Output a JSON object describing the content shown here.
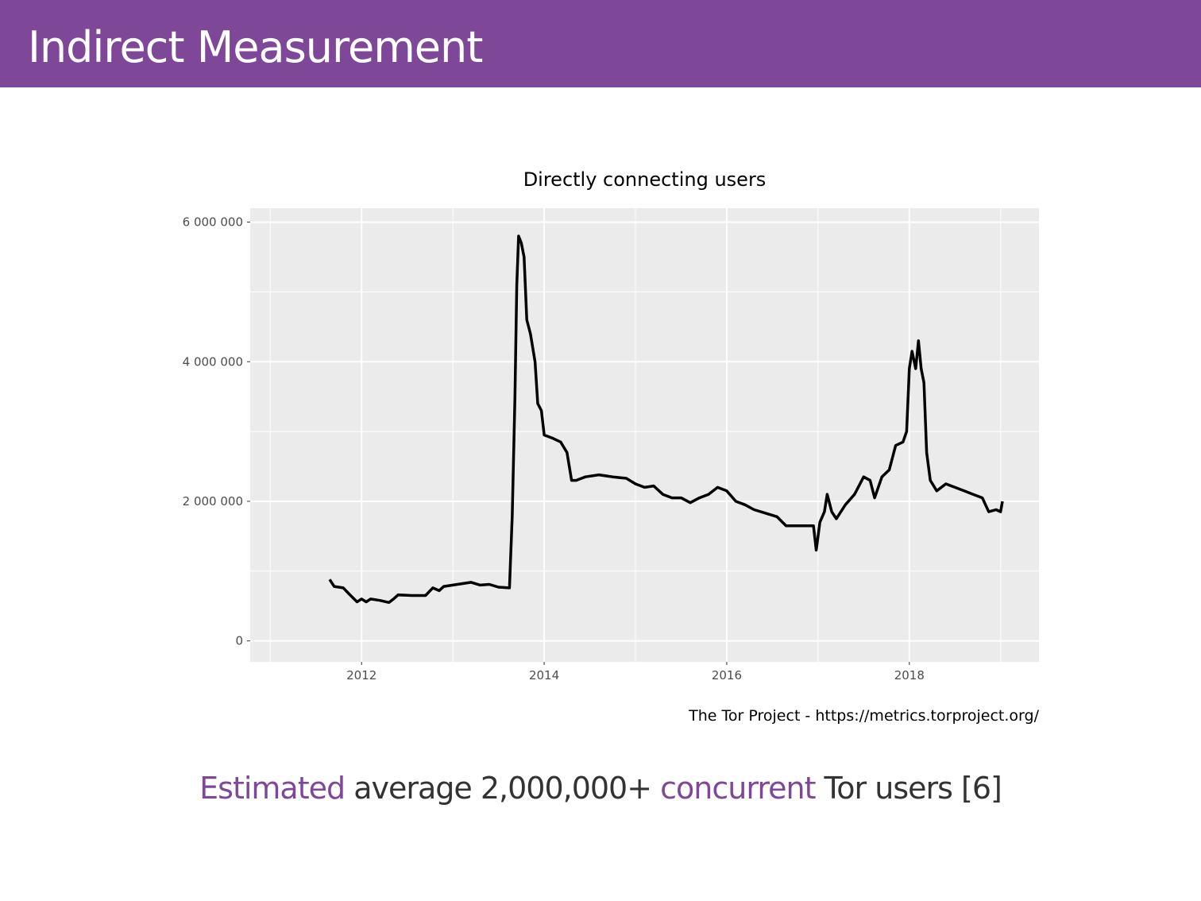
{
  "slide": {
    "title": "Indirect Measurement",
    "caption": {
      "word1": "Estimated",
      "text1": " average 2,000,000+ ",
      "word2": "concurrent",
      "text2": " Tor users [6]"
    },
    "accent_color": "#7e4798"
  },
  "chart_data": {
    "type": "line",
    "title": "Directly connecting users",
    "source": "The Tor Project - https://metrics.torproject.org/",
    "xlabel": "",
    "ylabel": "",
    "xlim": [
      2010.78,
      2019.42
    ],
    "ylim": [
      -300000,
      6200000
    ],
    "x_ticks": [
      2012,
      2014,
      2016,
      2018
    ],
    "x_tick_labels": [
      "2012",
      "2014",
      "2016",
      "2018"
    ],
    "y_ticks": [
      0,
      2000000,
      4000000,
      6000000
    ],
    "y_tick_labels": [
      "0",
      "2 000 000",
      "4 000 000",
      "6 000 000"
    ],
    "grid": true,
    "series": [
      {
        "name": "users",
        "color": "#000000",
        "points": [
          [
            2011.65,
            880000
          ],
          [
            2011.7,
            780000
          ],
          [
            2011.8,
            760000
          ],
          [
            2011.88,
            650000
          ],
          [
            2011.95,
            560000
          ],
          [
            2012.0,
            600000
          ],
          [
            2012.05,
            560000
          ],
          [
            2012.1,
            600000
          ],
          [
            2012.2,
            580000
          ],
          [
            2012.3,
            550000
          ],
          [
            2012.35,
            600000
          ],
          [
            2012.4,
            660000
          ],
          [
            2012.55,
            650000
          ],
          [
            2012.7,
            650000
          ],
          [
            2012.78,
            760000
          ],
          [
            2012.85,
            720000
          ],
          [
            2012.9,
            780000
          ],
          [
            2013.0,
            800000
          ],
          [
            2013.1,
            820000
          ],
          [
            2013.2,
            840000
          ],
          [
            2013.3,
            800000
          ],
          [
            2013.4,
            810000
          ],
          [
            2013.5,
            770000
          ],
          [
            2013.62,
            760000
          ],
          [
            2013.65,
            1800000
          ],
          [
            2013.68,
            3500000
          ],
          [
            2013.7,
            5100000
          ],
          [
            2013.72,
            5800000
          ],
          [
            2013.75,
            5700000
          ],
          [
            2013.78,
            5500000
          ],
          [
            2013.81,
            4600000
          ],
          [
            2013.85,
            4400000
          ],
          [
            2013.9,
            4000000
          ],
          [
            2013.93,
            3400000
          ],
          [
            2013.97,
            3300000
          ],
          [
            2014.0,
            2950000
          ],
          [
            2014.1,
            2900000
          ],
          [
            2014.18,
            2850000
          ],
          [
            2014.25,
            2700000
          ],
          [
            2014.3,
            2300000
          ],
          [
            2014.35,
            2300000
          ],
          [
            2014.45,
            2350000
          ],
          [
            2014.6,
            2380000
          ],
          [
            2014.75,
            2350000
          ],
          [
            2014.9,
            2330000
          ],
          [
            2015.0,
            2250000
          ],
          [
            2015.1,
            2200000
          ],
          [
            2015.2,
            2220000
          ],
          [
            2015.3,
            2100000
          ],
          [
            2015.4,
            2050000
          ],
          [
            2015.5,
            2050000
          ],
          [
            2015.6,
            1980000
          ],
          [
            2015.7,
            2050000
          ],
          [
            2015.8,
            2100000
          ],
          [
            2015.9,
            2200000
          ],
          [
            2016.0,
            2150000
          ],
          [
            2016.1,
            2000000
          ],
          [
            2016.2,
            1950000
          ],
          [
            2016.3,
            1880000
          ],
          [
            2016.45,
            1820000
          ],
          [
            2016.55,
            1780000
          ],
          [
            2016.65,
            1650000
          ],
          [
            2016.8,
            1650000
          ],
          [
            2016.95,
            1650000
          ],
          [
            2016.98,
            1300000
          ],
          [
            2017.02,
            1700000
          ],
          [
            2017.07,
            1850000
          ],
          [
            2017.1,
            2100000
          ],
          [
            2017.15,
            1850000
          ],
          [
            2017.2,
            1750000
          ],
          [
            2017.3,
            1950000
          ],
          [
            2017.4,
            2100000
          ],
          [
            2017.5,
            2350000
          ],
          [
            2017.57,
            2300000
          ],
          [
            2017.62,
            2050000
          ],
          [
            2017.7,
            2350000
          ],
          [
            2017.78,
            2450000
          ],
          [
            2017.85,
            2800000
          ],
          [
            2017.93,
            2850000
          ],
          [
            2017.97,
            3000000
          ],
          [
            2018.0,
            3900000
          ],
          [
            2018.03,
            4150000
          ],
          [
            2018.07,
            3900000
          ],
          [
            2018.1,
            4300000
          ],
          [
            2018.13,
            3900000
          ],
          [
            2018.16,
            3700000
          ],
          [
            2018.19,
            2700000
          ],
          [
            2018.23,
            2300000
          ],
          [
            2018.3,
            2150000
          ],
          [
            2018.4,
            2250000
          ],
          [
            2018.5,
            2200000
          ],
          [
            2018.6,
            2150000
          ],
          [
            2018.7,
            2100000
          ],
          [
            2018.8,
            2050000
          ],
          [
            2018.87,
            1850000
          ],
          [
            2018.95,
            1880000
          ],
          [
            2019.0,
            1850000
          ],
          [
            2019.02,
            2000000
          ]
        ]
      }
    ]
  }
}
